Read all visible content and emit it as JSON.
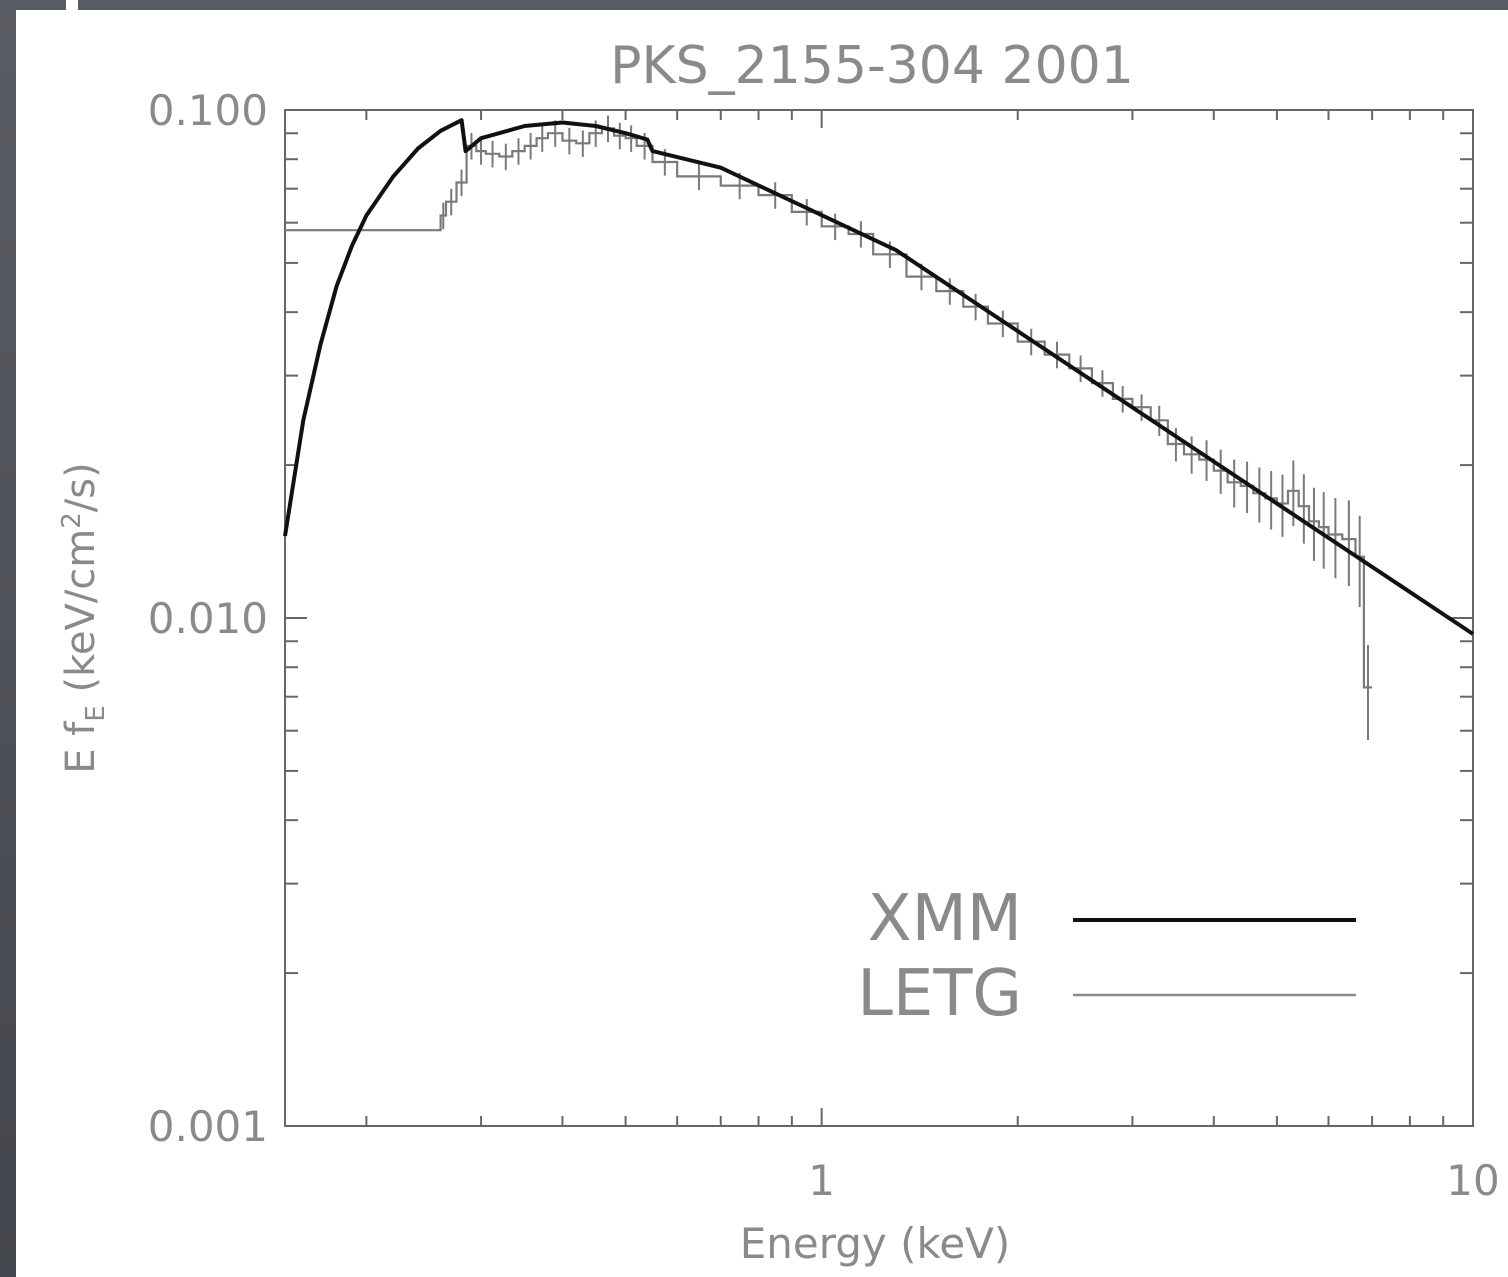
{
  "chart_data": {
    "type": "line",
    "title": "PKS_2155-304   2001",
    "xlabel": "Energy (keV)",
    "ylabel": "E f",
    "ylabel_sub": "E",
    "ylabel_units_pre": " (keV/cm",
    "ylabel_units_sup": "2",
    "ylabel_units_post": "/s)",
    "xscale": "log",
    "yscale": "log",
    "xlim": [
      0.15,
      10
    ],
    "ylim": [
      0.001,
      0.1
    ],
    "x_tick_labels": [
      {
        "value": 1,
        "label": "1"
      },
      {
        "value": 10,
        "label": "10"
      }
    ],
    "y_tick_labels": [
      {
        "value": 0.001,
        "label": "0.001"
      },
      {
        "value": 0.01,
        "label": "0.010"
      },
      {
        "value": 0.1,
        "label": "0.100"
      }
    ],
    "grid": false,
    "legend_position": "bottom-right",
    "series": [
      {
        "name": "XMM",
        "style": "thick-solid",
        "color": "#111111",
        "x": [
          0.15,
          0.16,
          0.17,
          0.18,
          0.19,
          0.2,
          0.22,
          0.24,
          0.26,
          0.28,
          0.284,
          0.3,
          0.35,
          0.4,
          0.45,
          0.5,
          0.54,
          0.55,
          0.7,
          1.3,
          10
        ],
        "y": [
          0.0145,
          0.0245,
          0.0345,
          0.045,
          0.054,
          0.062,
          0.074,
          0.084,
          0.091,
          0.0955,
          0.083,
          0.088,
          0.093,
          0.0945,
          0.093,
          0.09,
          0.0875,
          0.083,
          0.077,
          0.053,
          0.0093
        ]
      },
      {
        "name": "LETG",
        "style": "thin-histogram",
        "color": "#7a7a7a",
        "x": [
          0.15,
          0.26,
          0.265,
          0.275,
          0.285,
          0.295,
          0.305,
          0.32,
          0.335,
          0.35,
          0.365,
          0.38,
          0.4,
          0.42,
          0.44,
          0.46,
          0.48,
          0.5,
          0.52,
          0.55,
          0.6,
          0.7,
          0.8,
          0.9,
          1.0,
          1.1,
          1.2,
          1.35,
          1.5,
          1.65,
          1.8,
          2.0,
          2.2,
          2.4,
          2.6,
          2.8,
          3.0,
          3.2,
          3.4,
          3.6,
          3.8,
          4.0,
          4.2,
          4.4,
          4.6,
          4.8,
          5.0,
          5.2,
          5.4,
          5.6,
          5.8,
          6.0,
          6.3,
          6.6,
          6.8,
          7.0
        ],
        "y": [
          0.058,
          0.062,
          0.066,
          0.072,
          0.085,
          0.083,
          0.082,
          0.081,
          0.083,
          0.085,
          0.088,
          0.09,
          0.087,
          0.086,
          0.09,
          0.092,
          0.089,
          0.088,
          0.085,
          0.079,
          0.074,
          0.071,
          0.068,
          0.063,
          0.059,
          0.057,
          0.052,
          0.047,
          0.044,
          0.041,
          0.038,
          0.035,
          0.033,
          0.031,
          0.029,
          0.027,
          0.026,
          0.0245,
          0.022,
          0.021,
          0.0205,
          0.0195,
          0.0185,
          0.0182,
          0.0176,
          0.0172,
          0.0168,
          0.0178,
          0.0166,
          0.0155,
          0.0151,
          0.0146,
          0.0143,
          0.0132,
          0.0073,
          0.0073
        ]
      }
    ]
  }
}
